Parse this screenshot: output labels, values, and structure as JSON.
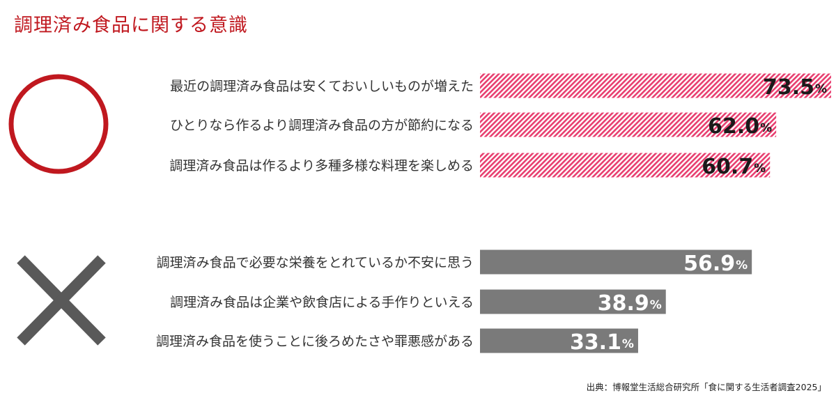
{
  "title": "調理済み食品に関する意識",
  "source": "出典：博報堂生活総合研究所「食に関する生活者調査2025」",
  "colors": {
    "title": "#c0181f",
    "positive_stripe": "#e83e6f",
    "negative_bar": "#7a7a7a",
    "circle": "#c0181f",
    "cross": "#595959"
  },
  "icons": {
    "positive": "circle-mark-icon",
    "negative": "cross-mark-icon"
  },
  "chart_data": {
    "type": "bar",
    "orientation": "horizontal",
    "unit": "%",
    "groups": [
      {
        "marker": "○",
        "style": "striped-pink",
        "items": [
          {
            "label": "最近の調理済み食品は安くておいしいものが増えた",
            "value": 73.5,
            "text": "73.5"
          },
          {
            "label": "ひとりなら作るより調理済み食品の方が節約になる",
            "value": 62.0,
            "text": "62.0"
          },
          {
            "label": "調理済み食品は作るより多種多様な料理を楽しめる",
            "value": 60.7,
            "text": "60.7"
          }
        ]
      },
      {
        "marker": "×",
        "style": "solid-gray",
        "items": [
          {
            "label": "調理済み食品で必要な栄養をとれているか不安に思う",
            "value": 56.9,
            "text": "56.9"
          },
          {
            "label": "調理済み食品は企業や飲食店による手作りといえる",
            "value": 38.9,
            "text": "38.9"
          },
          {
            "label": "調理済み食品を使うことに後ろめたさや罪悪感がある",
            "value": 33.1,
            "text": "33.1"
          }
        ]
      }
    ]
  }
}
